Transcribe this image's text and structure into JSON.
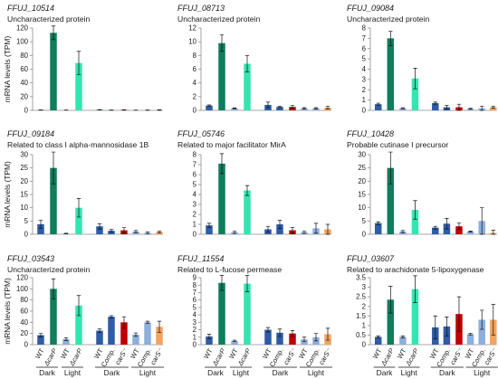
{
  "figure": {
    "x_categories": [
      "WT",
      "ΔcarP",
      "WT",
      "ΔcarP",
      "WT",
      "Comp.",
      "carS⁻",
      "WT",
      "Comp.",
      "carS⁻"
    ],
    "x_groups": [
      {
        "label": "Dark",
        "first": 0,
        "last": 1
      },
      {
        "label": "Light",
        "first": 2,
        "last": 3
      },
      {
        "label": "Dark",
        "first": 4,
        "last": 6
      },
      {
        "label": "Light",
        "first": 7,
        "last": 9
      }
    ],
    "bar_colors": [
      "#2f5ca6",
      "#0f7d5e",
      "#8eaede",
      "#33e5b0",
      "#2f5ca6",
      "#2f5ca6",
      "#c00000",
      "#8eaede",
      "#8eaede",
      "#f5a35c"
    ]
  },
  "chart_data": [
    {
      "type": "bar",
      "title": "FFUJ_10514",
      "subtitle": "Uncharacterized protein",
      "ylabel": "mRNA levels (TPM)",
      "ylim": [
        0,
        120
      ],
      "yticks": [
        0,
        20,
        40,
        60,
        80,
        100,
        120
      ],
      "values": [
        0.5,
        113,
        0.4,
        69,
        0.8,
        0.4,
        0.6,
        0.3,
        0.4,
        0.5
      ],
      "errors": [
        0.2,
        10,
        0.1,
        17,
        0.3,
        0.2,
        0.3,
        0.1,
        0.2,
        0.3
      ]
    },
    {
      "type": "bar",
      "title": "FFUJ_08713",
      "subtitle": "Uncharacterized protein",
      "ylim": [
        0,
        12
      ],
      "yticks": [
        0,
        2,
        4,
        6,
        8,
        10,
        12
      ],
      "values": [
        0.7,
        9.8,
        0.3,
        6.8,
        0.8,
        0.5,
        0.5,
        0.3,
        0.3,
        0.4
      ],
      "errors": [
        0.1,
        1.2,
        0.05,
        1.2,
        0.4,
        0.1,
        0.2,
        0.1,
        0.1,
        0.2
      ]
    },
    {
      "type": "bar",
      "title": "FFUJ_09084",
      "subtitle": "Uncharacterized protein",
      "ylim": [
        0,
        8
      ],
      "yticks": [
        0,
        1,
        2,
        3,
        4,
        5,
        6,
        7,
        8
      ],
      "values": [
        0.6,
        7.0,
        0.2,
        3.1,
        0.7,
        0.3,
        0.3,
        0.15,
        0.2,
        0.3
      ],
      "errors": [
        0.1,
        0.7,
        0.05,
        1.0,
        0.1,
        0.2,
        0.3,
        0.05,
        0.2,
        0.1
      ]
    },
    {
      "type": "bar",
      "title": "FFUJ_09184",
      "subtitle": "Related to class I alpha-mannosidase 1B",
      "ylabel": "mRNA levels (TPM)",
      "ylim": [
        0,
        30
      ],
      "yticks": [
        0,
        5,
        10,
        15,
        20,
        25,
        30
      ],
      "values": [
        3.8,
        25,
        0.3,
        10,
        3.0,
        1.3,
        1.5,
        1.0,
        0.5,
        0.8
      ],
      "errors": [
        1.5,
        6,
        0.1,
        3.5,
        1.0,
        0.5,
        1.0,
        0.4,
        0.3,
        0.3
      ]
    },
    {
      "type": "bar",
      "title": "FFUJ_05746",
      "subtitle": "Related to major facilitator MirA",
      "ylim": [
        0,
        8
      ],
      "yticks": [
        0,
        1,
        2,
        3,
        4,
        5,
        6,
        7,
        8
      ],
      "values": [
        0.9,
        7.1,
        0.2,
        4.4,
        0.5,
        1.0,
        0.4,
        0.2,
        0.6,
        0.5
      ],
      "errors": [
        0.2,
        1.0,
        0.1,
        0.5,
        0.3,
        0.4,
        0.3,
        0.1,
        0.5,
        0.5
      ]
    },
    {
      "type": "bar",
      "title": "FFUJ_10428",
      "subtitle": "Probable cutinase I precursor",
      "ylim": [
        0,
        30
      ],
      "yticks": [
        0,
        5,
        10,
        15,
        20,
        25,
        30
      ],
      "values": [
        4.2,
        25,
        1.0,
        9.2,
        2.5,
        4.0,
        3.0,
        1.0,
        5.0,
        0.5
      ],
      "errors": [
        0.5,
        6,
        0.4,
        3.5,
        0.5,
        2.0,
        1.2,
        0.2,
        5.0,
        1.0
      ]
    },
    {
      "type": "bar",
      "title": "FFUJ_03543",
      "subtitle": "Uncharacterized protein",
      "ylabel": "mRNA levels (TPM)",
      "ylim": [
        0,
        120
      ],
      "yticks": [
        0,
        20,
        40,
        60,
        80,
        100,
        120
      ],
      "values": [
        17,
        100,
        10,
        70,
        25,
        50,
        40,
        18,
        40,
        32
      ],
      "errors": [
        3,
        18,
        2.5,
        18,
        3,
        2,
        10,
        3,
        2,
        10
      ]
    },
    {
      "type": "bar",
      "title": "FFUJ_11554",
      "subtitle": "Related to L-fucose permease",
      "ylim": [
        0,
        9
      ],
      "yticks": [
        0,
        1,
        2,
        3,
        4,
        5,
        6,
        7,
        8,
        9
      ],
      "values": [
        1.1,
        8.3,
        0.5,
        8.2,
        2.0,
        1.6,
        1.5,
        0.7,
        1.0,
        1.4
      ],
      "errors": [
        0.3,
        1.0,
        0.1,
        1.1,
        0.3,
        0.5,
        0.4,
        0.3,
        0.5,
        0.8
      ]
    },
    {
      "type": "bar",
      "title": "FFUJ_03607",
      "subtitle": "Related to arachidonate 5-lipoxygenase",
      "ylim": [
        0,
        3.5
      ],
      "yticks": [
        0,
        0.5,
        1,
        1.5,
        2,
        2.5,
        3,
        3.5
      ],
      "values": [
        0.4,
        2.35,
        0.4,
        2.9,
        0.9,
        0.95,
        1.6,
        0.55,
        1.3,
        1.3
      ],
      "errors": [
        0.05,
        0.7,
        0.05,
        0.7,
        0.6,
        0.5,
        0.9,
        0.05,
        0.5,
        0.8
      ]
    }
  ]
}
